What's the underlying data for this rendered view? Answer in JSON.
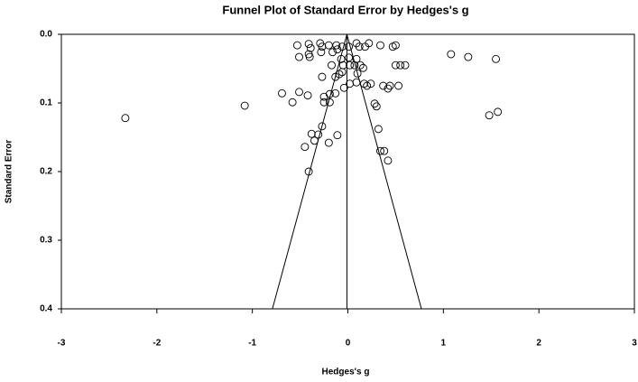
{
  "chart_data": {
    "type": "scatter",
    "title": "Funnel Plot of Standard Error by Hedges's g",
    "x_label": "Hedges's g",
    "y_label": "Standard Error",
    "xlim": [
      -3,
      3
    ],
    "xticks": [
      -3,
      -2,
      -1,
      0,
      1,
      2,
      3
    ],
    "ylim": [
      0,
      0.4
    ],
    "y_inverted": true,
    "yticks": [
      {
        "value": 0,
        "label": "0.0"
      },
      0.1,
      0.2,
      0.3,
      0.4
    ],
    "funnel": {
      "apex": -0.01,
      "lower": -0.79,
      "upper": 0.77
    },
    "series": [
      {
        "color": "#000000",
        "x": [
          -2.33,
          -1.08,
          -0.69,
          -0.58,
          -0.51,
          -0.53,
          -0.51,
          -0.41,
          -0.39,
          -0.41,
          -0.4,
          -0.29,
          -0.27,
          -0.2,
          -0.12,
          -0.28,
          -0.16,
          -0.11,
          -0.06,
          0.01,
          -0.17,
          -0.07,
          -0.05,
          0.01,
          0.02,
          0.09,
          0.07,
          0.12,
          0.18,
          0.13,
          0.16,
          0.09,
          0.22,
          0.34,
          0.47,
          0.5,
          0.5,
          0.55,
          0.6,
          1.08,
          1.26,
          1.55,
          -0.27,
          -0.13,
          -0.09,
          -0.06,
          -0.25,
          -0.19,
          -0.13,
          -0.04,
          0.02,
          0.09,
          -0.25,
          -0.19,
          -0.42,
          0.1,
          0.17,
          0.2,
          0.24,
          0.37,
          0.42,
          0.44,
          0.53,
          0.28,
          0.3,
          -0.27,
          -0.31,
          -0.38,
          -0.35,
          -0.45,
          -0.11,
          -0.2,
          -0.41,
          0.32,
          0.34,
          0.38,
          0.42,
          1.48,
          1.57
        ],
        "values": [
          0.122,
          0.104,
          0.086,
          0.099,
          0.084,
          0.016,
          0.033,
          0.014,
          0.02,
          0.029,
          0.033,
          0.013,
          0.018,
          0.016,
          0.016,
          0.026,
          0.026,
          0.022,
          0.018,
          0.018,
          0.045,
          0.036,
          0.045,
          0.034,
          0.045,
          0.036,
          0.045,
          0.018,
          0.018,
          0.045,
          0.049,
          0.013,
          0.013,
          0.016,
          0.018,
          0.016,
          0.045,
          0.045,
          0.045,
          0.029,
          0.033,
          0.036,
          0.062,
          0.062,
          0.058,
          0.055,
          0.091,
          0.087,
          0.086,
          0.078,
          0.072,
          0.07,
          0.099,
          0.099,
          0.089,
          0.057,
          0.072,
          0.075,
          0.072,
          0.075,
          0.079,
          0.075,
          0.075,
          0.101,
          0.105,
          0.134,
          0.146,
          0.145,
          0.155,
          0.164,
          0.147,
          0.158,
          0.2,
          0.138,
          0.17,
          0.17,
          0.184,
          0.118,
          0.113
        ]
      }
    ]
  }
}
